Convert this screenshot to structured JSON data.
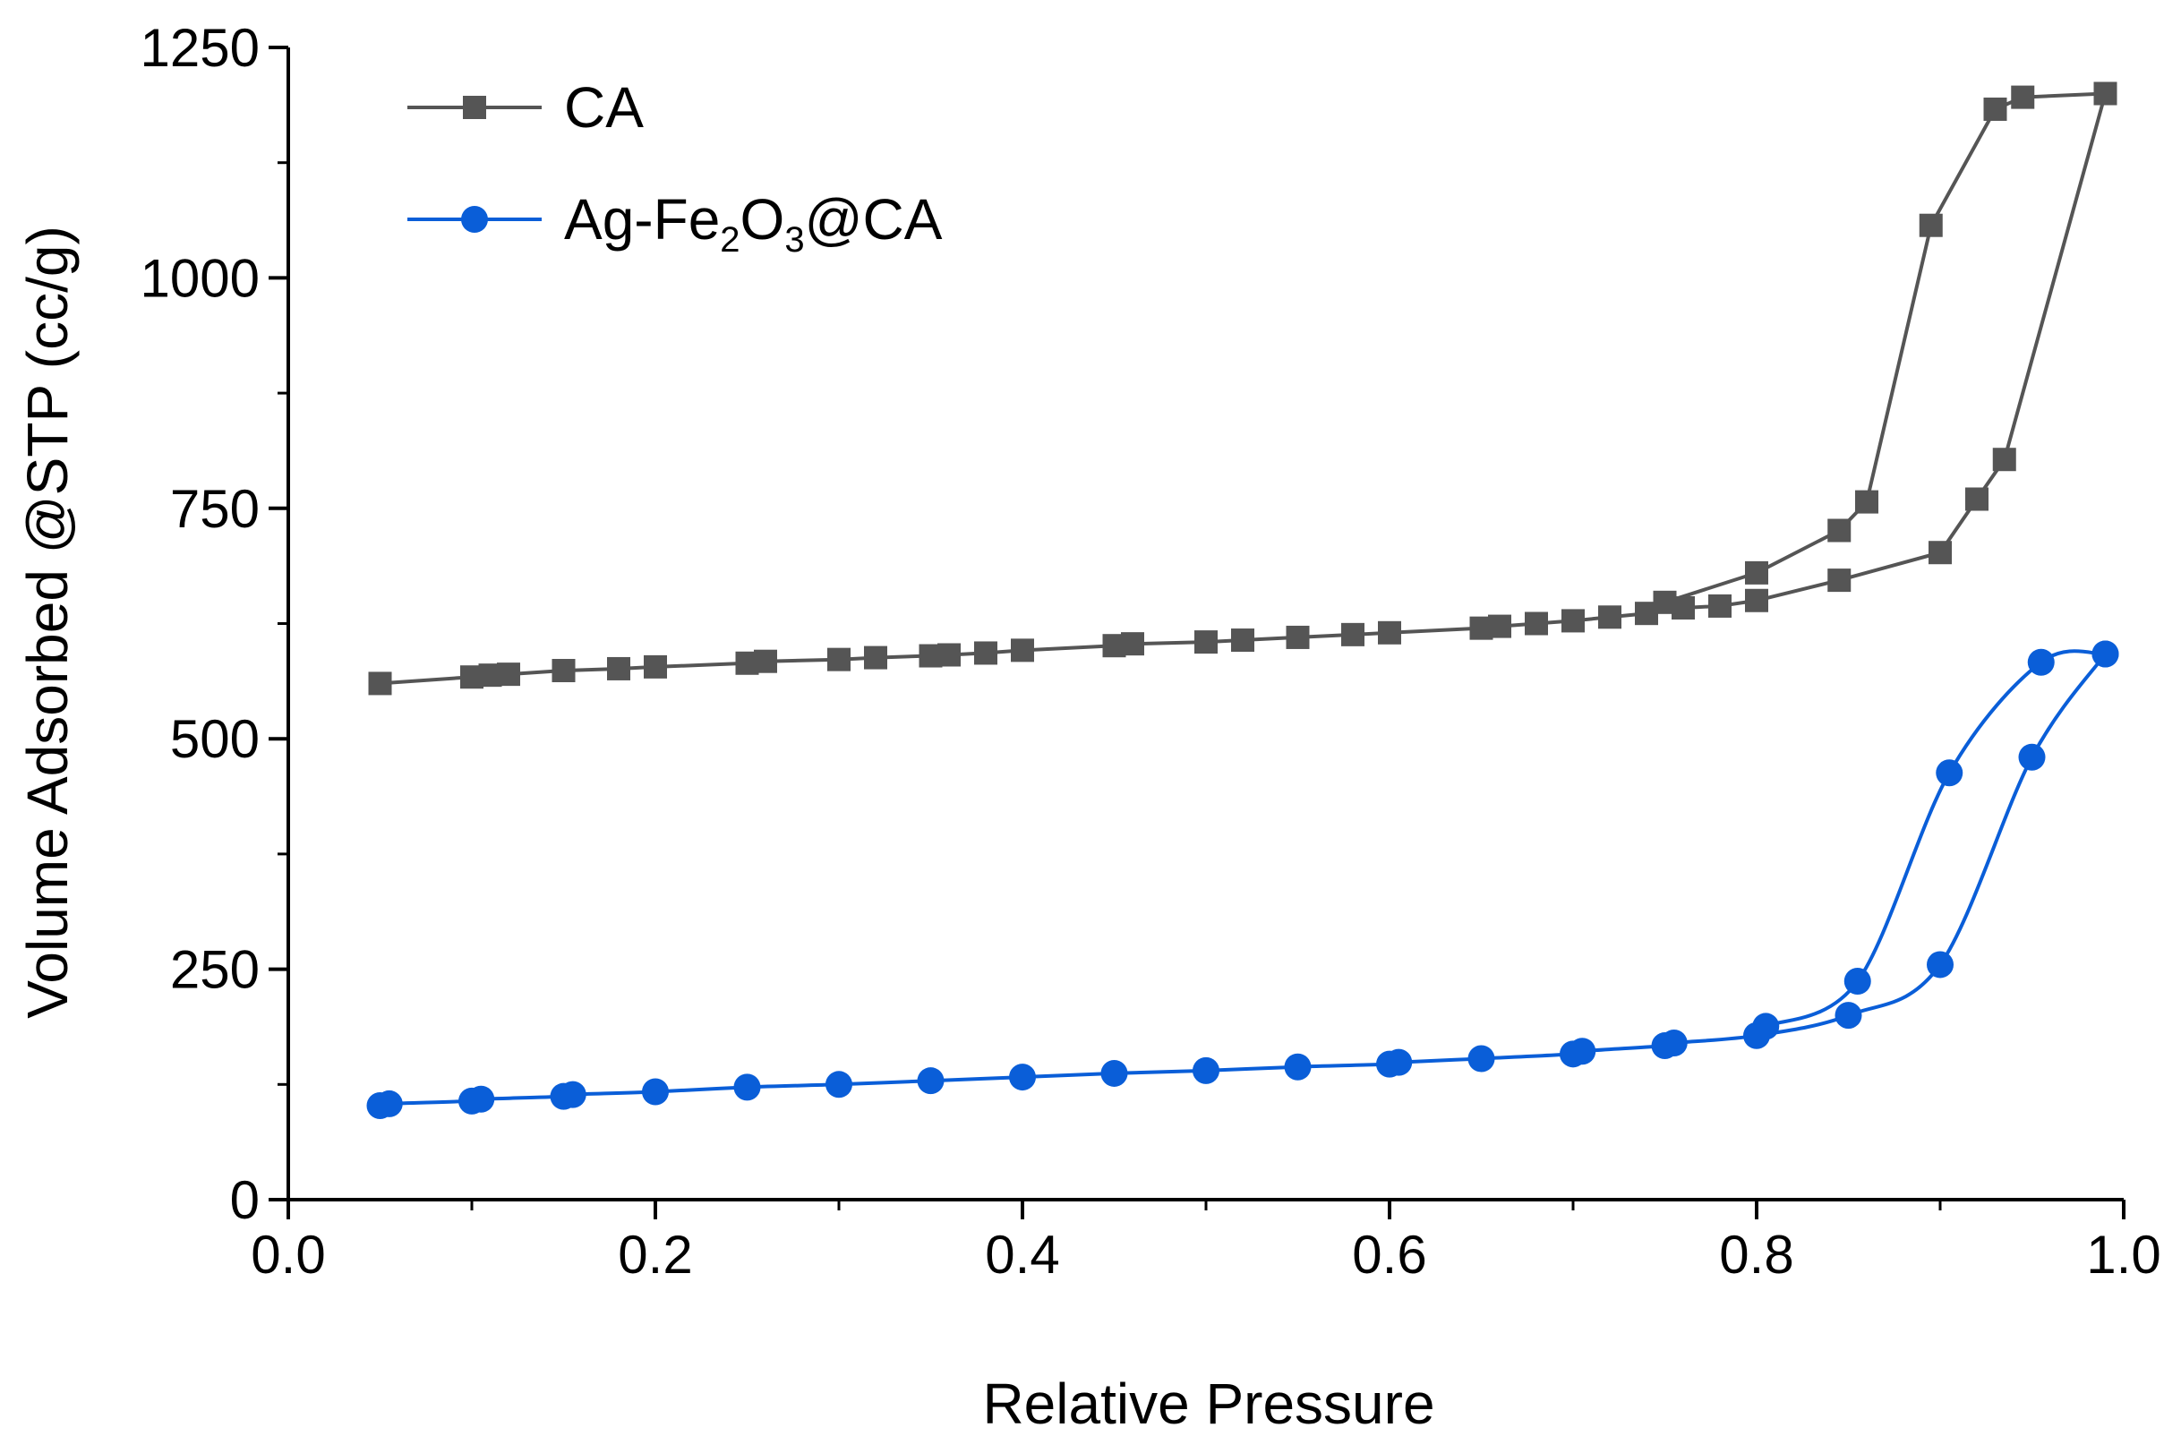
{
  "chart_data": {
    "type": "scatter",
    "xlabel": "Relative Pressure",
    "ylabel": "Volume Adsorbed @STP (cc/g)",
    "xlim": [
      0.0,
      1.0
    ],
    "ylim": [
      0,
      1250
    ],
    "x_ticks": [
      "0.0",
      "0.2",
      "0.4",
      "0.6",
      "0.8",
      "1.0"
    ],
    "y_ticks": [
      "0",
      "250",
      "500",
      "750",
      "1000",
      "1250"
    ],
    "legend_position": "top-left",
    "series": [
      {
        "name": "CA",
        "color": "#555555",
        "marker": "square",
        "adsorption": {
          "x": [
            0.05,
            0.1,
            0.11,
            0.12,
            0.15,
            0.18,
            0.2,
            0.25,
            0.26,
            0.3,
            0.32,
            0.35,
            0.36,
            0.38,
            0.4,
            0.45,
            0.46,
            0.5,
            0.52,
            0.55,
            0.58,
            0.6,
            0.65,
            0.66,
            0.68,
            0.7,
            0.72,
            0.74,
            0.76,
            0.78,
            0.8,
            0.845,
            0.9,
            0.92,
            0.935,
            0.99
          ],
          "y": [
            560,
            567,
            569,
            570,
            574,
            576,
            578,
            582,
            584,
            586,
            588,
            590,
            591,
            593,
            596,
            601,
            603,
            605,
            607,
            610,
            613,
            615,
            620,
            622,
            625,
            628,
            632,
            636,
            642,
            644,
            650,
            672,
            702,
            760,
            803,
            1200
          ]
        },
        "desorption": {
          "x": [
            0.99,
            0.945,
            0.93,
            0.895,
            0.86,
            0.845,
            0.8,
            0.75
          ],
          "y": [
            1200,
            1196,
            1183,
            1057,
            757,
            726,
            680,
            648
          ]
        }
      },
      {
        "name": "Ag-Fe2O3@CA",
        "legend_prefix": "Ag-Fe",
        "legend_sub1": "2",
        "legend_mid": "O",
        "legend_sub2": "3",
        "legend_suffix": "@CA",
        "color": "#0a5ed8",
        "marker": "circle",
        "adsorption": {
          "x": [
            0.05,
            0.055,
            0.1,
            0.105,
            0.15,
            0.155,
            0.2,
            0.25,
            0.3,
            0.35,
            0.4,
            0.45,
            0.5,
            0.55,
            0.6,
            0.605,
            0.65,
            0.7,
            0.705,
            0.75,
            0.755,
            0.8,
            0.85,
            0.9,
            0.95,
            0.99
          ],
          "y": [
            102,
            104,
            107,
            109,
            112,
            114,
            117,
            122,
            125,
            129,
            133,
            137,
            140,
            144,
            147,
            149,
            153,
            158,
            161,
            167,
            170,
            178,
            200,
            255,
            480,
            592
          ]
        },
        "desorption": {
          "x": [
            0.99,
            0.955,
            0.905,
            0.855,
            0.805
          ],
          "y": [
            592,
            583,
            463,
            237,
            188
          ]
        }
      }
    ]
  }
}
